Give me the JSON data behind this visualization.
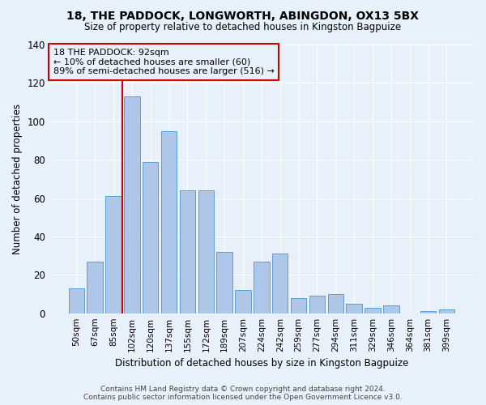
{
  "title": "18, THE PADDOCK, LONGWORTH, ABINGDON, OX13 5BX",
  "subtitle": "Size of property relative to detached houses in Kingston Bagpuize",
  "xlabel": "Distribution of detached houses by size in Kingston Bagpuize",
  "ylabel": "Number of detached properties",
  "footer_line1": "Contains HM Land Registry data © Crown copyright and database right 2024.",
  "footer_line2": "Contains public sector information licensed under the Open Government Licence v3.0.",
  "bar_labels": [
    "50sqm",
    "67sqm",
    "85sqm",
    "102sqm",
    "120sqm",
    "137sqm",
    "155sqm",
    "172sqm",
    "189sqm",
    "207sqm",
    "224sqm",
    "242sqm",
    "259sqm",
    "277sqm",
    "294sqm",
    "311sqm",
    "329sqm",
    "346sqm",
    "364sqm",
    "381sqm",
    "399sqm"
  ],
  "bar_values": [
    13,
    27,
    61,
    113,
    79,
    95,
    64,
    64,
    32,
    12,
    27,
    31,
    8,
    9,
    10,
    5,
    3,
    4,
    0,
    1,
    2
  ],
  "bar_color": "#aec6e8",
  "bar_edge_color": "#5a9fd4",
  "bg_color": "#e8f0fa",
  "grid_color": "#ffffff",
  "vline_color": "#cc0000",
  "vline_pos": 2.5,
  "annotation_text": "18 THE PADDOCK: 92sqm\n← 10% of detached houses are smaller (60)\n89% of semi-detached houses are larger (516) →",
  "annotation_box_color": "#cc0000",
  "ylim": [
    0,
    140
  ],
  "yticks": [
    0,
    20,
    40,
    60,
    80,
    100,
    120,
    140
  ]
}
